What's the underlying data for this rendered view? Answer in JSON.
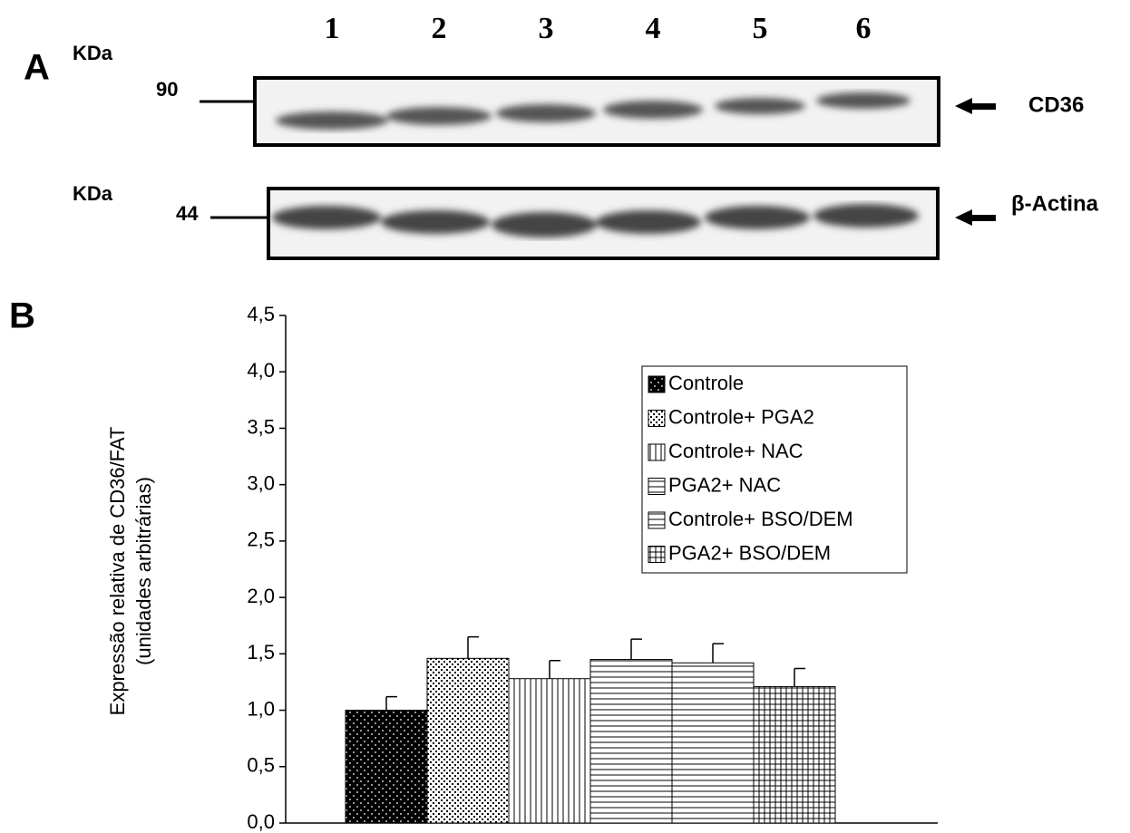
{
  "panel_a": {
    "label": "A",
    "lanes": [
      "1",
      "2",
      "3",
      "4",
      "5",
      "6"
    ],
    "blots": [
      {
        "unit": "KDa",
        "marker": "90",
        "protein": "CD36"
      },
      {
        "unit": "KDa",
        "marker": "44",
        "protein": "β-Actina"
      }
    ]
  },
  "panel_b": {
    "label": "B"
  },
  "chart_data": {
    "type": "bar",
    "ylabel": [
      "Expressão relativa de CD36/FAT",
      "(unidades arbitrárias)"
    ],
    "ylim": [
      0,
      4.5
    ],
    "yticks": [
      {
        "value": 0,
        "label": "0,0"
      },
      {
        "value": 0.5,
        "label": "0,5"
      },
      {
        "value": 1,
        "label": "1,0"
      },
      {
        "value": 1.5,
        "label": "1,5"
      },
      {
        "value": 2,
        "label": "2,0"
      },
      {
        "value": 2.5,
        "label": "2,5"
      },
      {
        "value": 3,
        "label": "3,0"
      },
      {
        "value": 3.5,
        "label": "3,5"
      },
      {
        "value": 4,
        "label": "4,0"
      },
      {
        "value": 4.5,
        "label": "4,5"
      }
    ],
    "legend": "top-right",
    "series": [
      {
        "name": "Controle",
        "pattern": "dots-black",
        "values": [
          1.0
        ],
        "errors": [
          0.12
        ]
      },
      {
        "name": "Controle+ PGA2",
        "pattern": "dots-dense",
        "values": [
          1.46
        ],
        "errors": [
          0.19
        ]
      },
      {
        "name": "Controle+ NAC",
        "pattern": "vertical",
        "values": [
          1.28
        ],
        "errors": [
          0.16
        ]
      },
      {
        "name": "PGA2+ NAC",
        "pattern": "horizontal",
        "values": [
          1.45
        ],
        "errors": [
          0.18
        ]
      },
      {
        "name": "Controle+ BSO/DEM",
        "pattern": "horizontal",
        "values": [
          1.42
        ],
        "errors": [
          0.17
        ]
      },
      {
        "name": "PGA2+ BSO/DEM",
        "pattern": "grid",
        "values": [
          1.21
        ],
        "errors": [
          0.16
        ]
      }
    ]
  }
}
